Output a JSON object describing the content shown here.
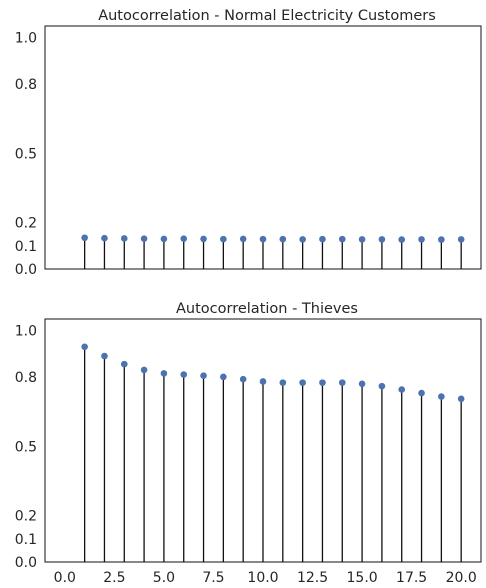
{
  "colors": {
    "marker": "#4c72b0",
    "stem": "#111111",
    "axes": "#262626"
  },
  "chart_data": [
    {
      "type": "stem",
      "title": "Autocorrelation - Normal Electricity Customers",
      "xlabel": "",
      "ylabel": "",
      "xlim": [
        -1,
        21
      ],
      "ylim": [
        0,
        1.05
      ],
      "yticks": [
        0.0,
        0.1,
        0.2,
        0.5,
        0.8,
        1.0
      ],
      "ytick_labels": [
        "0.0",
        "0.1",
        "0.2",
        "0.5",
        "0.8",
        "1.0"
      ],
      "x": [
        1,
        2,
        3,
        4,
        5,
        6,
        7,
        8,
        9,
        10,
        11,
        12,
        13,
        14,
        15,
        16,
        17,
        18,
        19,
        20
      ],
      "values": [
        0.135,
        0.133,
        0.132,
        0.131,
        0.13,
        0.131,
        0.13,
        0.129,
        0.13,
        0.129,
        0.129,
        0.128,
        0.129,
        0.129,
        0.128,
        0.128,
        0.127,
        0.128,
        0.127,
        0.128
      ],
      "grid": false,
      "legend": "none"
    },
    {
      "type": "stem",
      "title": "Autocorrelation - Thieves",
      "xlabel": "",
      "ylabel": "",
      "xlim": [
        -1,
        21
      ],
      "ylim": [
        0,
        1.05
      ],
      "yticks": [
        0.0,
        0.1,
        0.2,
        0.5,
        0.8,
        1.0
      ],
      "ytick_labels": [
        "0.0",
        "0.1",
        "0.2",
        "0.5",
        "0.8",
        "1.0"
      ],
      "xticks": [
        0.0,
        2.5,
        5.0,
        7.5,
        10.0,
        12.5,
        15.0,
        17.5,
        20.0
      ],
      "xtick_labels": [
        "0.0",
        "2.5",
        "5.0",
        "7.5",
        "10.0",
        "12.5",
        "15.0",
        "17.5",
        "20.0"
      ],
      "x": [
        1,
        2,
        3,
        4,
        5,
        6,
        7,
        8,
        9,
        10,
        11,
        12,
        13,
        14,
        15,
        16,
        17,
        18,
        19,
        20
      ],
      "values": [
        0.93,
        0.89,
        0.855,
        0.83,
        0.815,
        0.81,
        0.805,
        0.8,
        0.79,
        0.78,
        0.775,
        0.775,
        0.775,
        0.775,
        0.77,
        0.76,
        0.745,
        0.73,
        0.715,
        0.705
      ],
      "grid": false,
      "legend": "none"
    }
  ]
}
